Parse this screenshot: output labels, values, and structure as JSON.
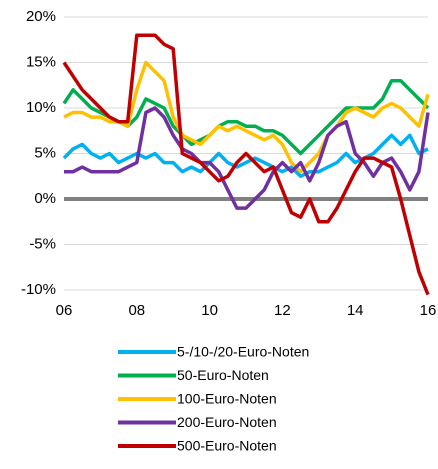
{
  "chart_data": {
    "type": "line",
    "x": [
      2006,
      2006.25,
      2006.5,
      2006.75,
      2007,
      2007.25,
      2007.5,
      2007.75,
      2008,
      2008.25,
      2008.5,
      2008.75,
      2009,
      2009.25,
      2009.5,
      2009.75,
      2010,
      2010.25,
      2010.5,
      2010.75,
      2011,
      2011.25,
      2011.5,
      2011.75,
      2012,
      2012.25,
      2012.5,
      2012.75,
      2013,
      2013.25,
      2013.5,
      2013.75,
      2014,
      2014.25,
      2014.5,
      2014.75,
      2015,
      2015.25,
      2015.5,
      2015.75,
      2016
    ],
    "series": [
      {
        "name": "5-/10-/20-Euro-Noten",
        "color": "#00b0f0",
        "values": [
          4.5,
          5.5,
          6,
          5,
          4.5,
          5,
          4,
          4.5,
          5,
          4.5,
          5,
          4,
          4,
          3,
          3.5,
          3,
          4,
          5,
          4,
          3.5,
          4,
          4.5,
          4,
          3.5,
          3,
          3.5,
          2.5,
          3,
          3,
          3.5,
          4,
          5,
          4,
          4.5,
          5,
          6,
          7,
          6,
          7,
          5,
          5.5
        ]
      },
      {
        "name": "50-Euro-Noten",
        "color": "#00b050",
        "values": [
          10.5,
          12,
          11,
          10,
          9.5,
          9,
          8.5,
          8,
          9,
          11,
          10.5,
          10,
          8,
          7,
          6,
          6.5,
          7,
          8,
          8.5,
          8.5,
          8,
          8,
          7.5,
          7.5,
          7,
          6,
          5,
          6,
          7,
          8,
          9,
          10,
          10,
          10,
          10,
          11,
          13,
          13,
          12,
          11,
          10
        ]
      },
      {
        "name": "100-Euro-Noten",
        "color": "#ffc000",
        "values": [
          9,
          9.5,
          9.5,
          9,
          9,
          8.5,
          8.5,
          8,
          12,
          15,
          14,
          13,
          9,
          7,
          6.5,
          6,
          7,
          8,
          7.5,
          8,
          7.5,
          7,
          6.5,
          7,
          6,
          4,
          3,
          4,
          5,
          7,
          8,
          9.5,
          10,
          9.5,
          9,
          10,
          10.5,
          10,
          9,
          8,
          11.5
        ]
      },
      {
        "name": "200-Euro-Noten",
        "color": "#7030a0",
        "values": [
          3,
          3,
          3.5,
          3,
          3,
          3,
          3,
          3.5,
          4,
          9.5,
          10,
          9,
          7,
          5.5,
          5,
          4,
          4,
          3,
          1,
          -1,
          -1,
          0,
          1,
          3,
          4,
          3,
          4,
          2,
          4,
          7,
          8,
          8.5,
          5,
          4,
          2.5,
          4,
          4.5,
          3,
          1,
          3,
          9.5
        ]
      },
      {
        "name": "500-Euro-Noten",
        "color": "#c00000",
        "values": [
          15,
          13.5,
          12,
          11,
          10,
          9,
          8.5,
          8.5,
          18,
          18,
          18,
          17,
          16.5,
          5,
          4.5,
          4,
          3,
          2,
          2.5,
          4,
          5,
          4,
          3,
          3.5,
          1,
          -1.5,
          -2,
          0,
          -2.5,
          -2.5,
          -1,
          1,
          3,
          4.5,
          4.5,
          4,
          3.5,
          0,
          -4,
          -8,
          -10.5
        ]
      }
    ],
    "xlim": [
      2006,
      2016
    ],
    "xticks": [
      {
        "value": 2006,
        "label": "06"
      },
      {
        "value": 2008,
        "label": "08"
      },
      {
        "value": 2010,
        "label": "10"
      },
      {
        "value": 2012,
        "label": "12"
      },
      {
        "value": 2014,
        "label": "14"
      },
      {
        "value": 2016,
        "label": "16"
      }
    ],
    "ylim": [
      -10,
      20
    ],
    "yticks": [
      {
        "value": -10,
        "label": "-10%"
      },
      {
        "value": -5,
        "label": "-5%"
      },
      {
        "value": 0,
        "label": "0%"
      },
      {
        "value": 5,
        "label": "5%"
      },
      {
        "value": 10,
        "label": "10%"
      },
      {
        "value": 15,
        "label": "15%"
      },
      {
        "value": 20,
        "label": "20%"
      }
    ],
    "grid": true
  }
}
